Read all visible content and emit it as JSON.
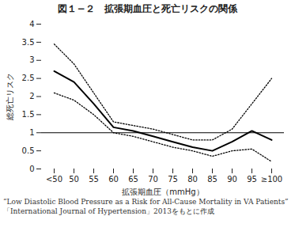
{
  "chart_data": {
    "type": "line",
    "title": "図１−２　拡張期血圧と死亡リスクの関係",
    "ylabel": "総死亡リスク",
    "xlabel": "拡張期血圧（mmHg）",
    "categories": [
      "<50",
      "50",
      "55",
      "60",
      "65",
      "70",
      "75",
      "80",
      "85",
      "90",
      "95",
      "≥100"
    ],
    "series": [
      {
        "color": "#000000",
        "line_style": "dotted",
        "values": [
          3.45,
          2.9,
          2.1,
          1.3,
          1.2,
          1.1,
          0.95,
          0.8,
          0.8,
          1.1,
          1.8,
          2.5
        ]
      },
      {
        "color": "#000000",
        "line_style": "solid",
        "values": [
          2.7,
          2.4,
          1.8,
          1.15,
          1.05,
          0.9,
          0.75,
          0.6,
          0.5,
          0.75,
          1.05,
          0.8
        ]
      },
      {
        "color": "#000000",
        "line_style": "dotted",
        "values": [
          2.1,
          1.9,
          1.5,
          1.0,
          0.9,
          0.75,
          0.6,
          0.5,
          0.35,
          0.5,
          0.55,
          0.2
        ]
      }
    ],
    "reference_line": 1,
    "ylim": [
      0,
      4
    ],
    "yticks": [
      0,
      0.5,
      1,
      1.5,
      2,
      2.5,
      3,
      3.5,
      4
    ],
    "grid": false,
    "caption": [
      "“Low Diastolic Blood Pressure as a Risk for All-Cause Mortality in VA Patients”",
      "「International Journal of Hypertension」2013をもとに作成"
    ]
  }
}
